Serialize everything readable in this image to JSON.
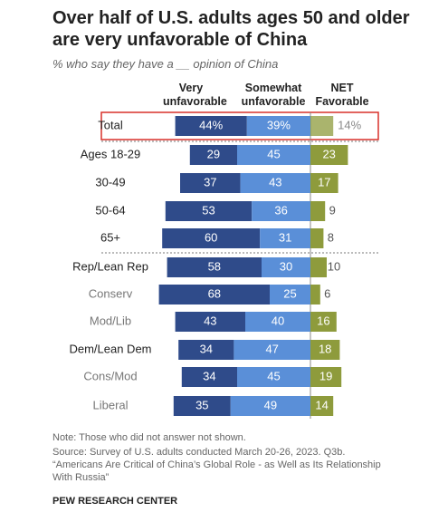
{
  "chart_data": {
    "type": "diverging_bar",
    "title": "Over half of U.S. adults ages 50 and older are very unfavorable of China",
    "subtitle": "% who say they have a __ opinion of China",
    "categories": [
      "Total",
      "Ages 18-29",
      "30-49",
      "50-64",
      "65+",
      "Rep/Lean Rep",
      "Conserv",
      "Mod/Lib",
      "Dem/Lean Dem",
      "Cons/Mod",
      "Liberal"
    ],
    "label_colors": [
      "#222",
      "#222",
      "#222",
      "#222",
      "#222",
      "#222",
      "#777",
      "#777",
      "#222",
      "#777",
      "#777"
    ],
    "series": [
      {
        "name": "Very unfavorable",
        "color": "#2f4b8a",
        "values": [
          44,
          29,
          37,
          53,
          60,
          58,
          68,
          43,
          34,
          34,
          35
        ],
        "value_labels": [
          "44%",
          "29",
          "37",
          "53",
          "60",
          "58",
          "68",
          "43",
          "34",
          "34",
          "35"
        ]
      },
      {
        "name": "Somewhat unfavorable",
        "color": "#5a8fd8",
        "values": [
          39,
          45,
          43,
          36,
          31,
          30,
          25,
          40,
          47,
          45,
          49
        ],
        "value_labels": [
          "39%",
          "45",
          "43",
          "36",
          "31",
          "30",
          "25",
          "40",
          "47",
          "45",
          "49"
        ]
      },
      {
        "name": "NET Favorable",
        "color": "#8e9b3c",
        "values": [
          14,
          23,
          17,
          9,
          8,
          10,
          6,
          16,
          18,
          19,
          14
        ],
        "value_labels": [
          "14%",
          "23",
          "17",
          "9",
          "8",
          "10",
          "6",
          "16",
          "18",
          "19",
          "14"
        ]
      }
    ],
    "note": "Note: Those who did not answer not shown.",
    "source": "Source: Survey of U.S. adults conducted March 20-26, 2023. Q3b. “Americans Are Critical of China’s Global Role - as Well as Its Relationship With Russia”",
    "brand": "PEW RESEARCH CENTER"
  }
}
